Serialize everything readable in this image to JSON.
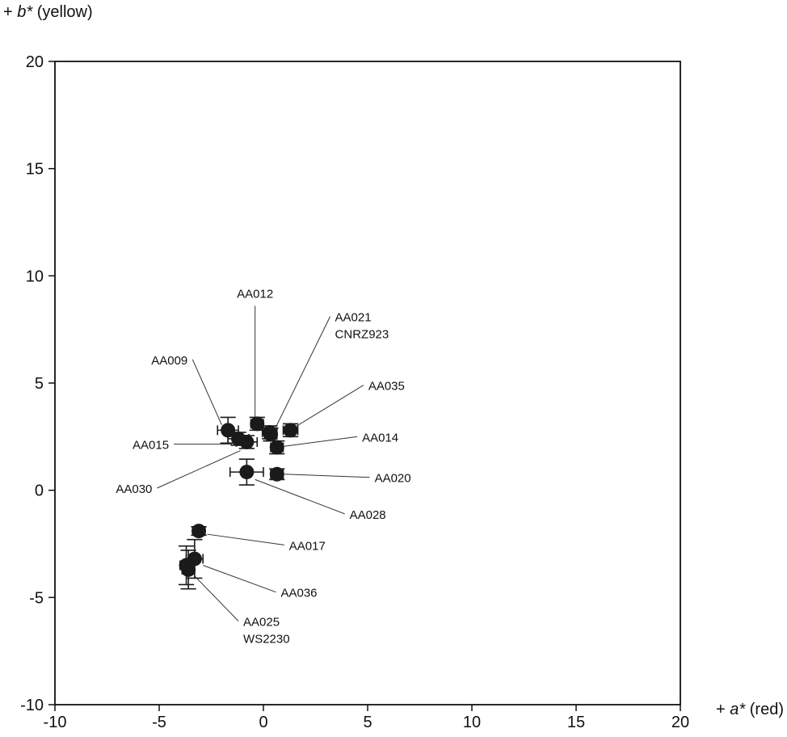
{
  "chart_data": {
    "type": "scatter",
    "title": "",
    "xlabel": {
      "prefix": "+ ",
      "symbol": "a*",
      "suffix": " (red)"
    },
    "ylabel": {
      "prefix": "+ ",
      "symbol": "b*",
      "suffix": " (yellow)"
    },
    "xlim": [
      -10,
      20
    ],
    "ylim": [
      -10,
      20
    ],
    "xticks": [
      -10,
      -5,
      0,
      5,
      10,
      15,
      20
    ],
    "yticks": [
      -10,
      -5,
      0,
      5,
      10,
      15,
      20
    ],
    "grid": false,
    "colors": {
      "marker": "#1a1a1a",
      "axis": "#111111"
    },
    "points": [
      {
        "id": "AA009",
        "x": -1.7,
        "y": 2.8,
        "xerr": 0.5,
        "yerr": 0.6
      },
      {
        "id": "AA015",
        "x": -1.2,
        "y": 2.4,
        "xerr": 0.5,
        "yerr": 0.3
      },
      {
        "id": "AA030",
        "x": -0.8,
        "y": 2.25,
        "xerr": 0.5,
        "yerr": 0.3
      },
      {
        "id": "AA012",
        "x": -0.3,
        "y": 3.1,
        "xerr": 0.3,
        "yerr": 0.3
      },
      {
        "id": "AA021",
        "x": 0.3,
        "y": 2.7,
        "xerr": 0.35,
        "yerr": 0.3
      },
      {
        "id": "CNRZ923",
        "x": 0.35,
        "y": 2.6,
        "xerr": 0.3,
        "yerr": 0.3
      },
      {
        "id": "AA035",
        "x": 1.3,
        "y": 2.8,
        "xerr": 0.35,
        "yerr": 0.3
      },
      {
        "id": "AA014",
        "x": 0.65,
        "y": 2.0,
        "xerr": 0.3,
        "yerr": 0.3
      },
      {
        "id": "AA028",
        "x": -0.8,
        "y": 0.85,
        "xerr": 0.8,
        "yerr": 0.6
      },
      {
        "id": "AA020",
        "x": 0.65,
        "y": 0.75,
        "xerr": 0.3,
        "yerr": 0.25
      },
      {
        "id": "AA017",
        "x": -3.1,
        "y": -1.9,
        "xerr": 0.3,
        "yerr": 0.2
      },
      {
        "id": "AA036",
        "x": -3.3,
        "y": -3.2,
        "xerr": 0.4,
        "yerr": 0.9
      },
      {
        "id": "AA025",
        "x": -3.7,
        "y": -3.5,
        "xerr": 0.3,
        "yerr": 0.9
      },
      {
        "id": "WS2230",
        "x": -3.6,
        "y": -3.7,
        "xerr": 0.3,
        "yerr": 0.9
      }
    ],
    "annotations": [
      {
        "text": [
          "AA012"
        ],
        "tx": -0.4,
        "ty": 8.6,
        "px": -0.4,
        "py": 3.3
      },
      {
        "text": [
          "AA021",
          "CNRZ923"
        ],
        "tx": 3.2,
        "ty": 8.1,
        "px": 0.6,
        "py": 2.95
      },
      {
        "text": [
          "AA009"
        ],
        "tx": -3.4,
        "ty": 6.1,
        "px": -2.0,
        "py": 3.05
      },
      {
        "text": [
          "AA035"
        ],
        "tx": 4.8,
        "ty": 4.9,
        "px": 1.6,
        "py": 3.0
      },
      {
        "text": [
          "AA015"
        ],
        "tx": -4.3,
        "ty": 2.15,
        "px": -1.5,
        "py": 2.15
      },
      {
        "text": [
          "AA014"
        ],
        "tx": 4.5,
        "ty": 2.5,
        "px": 1.0,
        "py": 2.05
      },
      {
        "text": [
          "AA030"
        ],
        "tx": -5.1,
        "ty": 0.1,
        "px": -1.1,
        "py": 1.85
      },
      {
        "text": [
          "AA020"
        ],
        "tx": 5.1,
        "ty": 0.6,
        "px": 1.0,
        "py": 0.75
      },
      {
        "text": [
          "AA028"
        ],
        "tx": 3.9,
        "ty": -1.1,
        "px": -0.4,
        "py": 0.5
      },
      {
        "text": [
          "AA017"
        ],
        "tx": 1.0,
        "ty": -2.55,
        "px": -2.7,
        "py": -2.05
      },
      {
        "text": [
          "AA036"
        ],
        "tx": 0.6,
        "ty": -4.75,
        "px": -2.9,
        "py": -3.5
      },
      {
        "text": [
          "AA025",
          "WS2230"
        ],
        "tx": -1.2,
        "ty": -6.1,
        "px": -3.3,
        "py": -4.0
      }
    ]
  }
}
